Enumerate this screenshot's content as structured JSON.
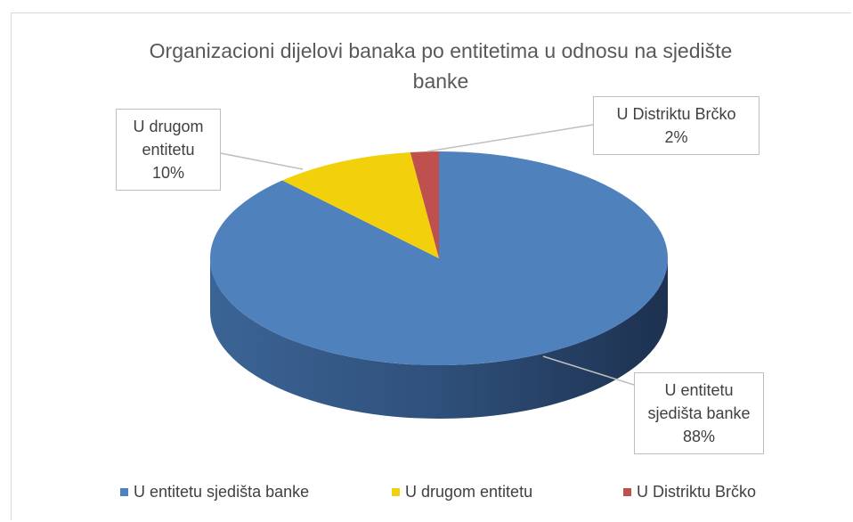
{
  "chart_data": {
    "type": "pie3d",
    "title": "Organizacioni dijelovi banaka po entitetima u odnosu na sjedište banke",
    "categories": [
      "U entitetu sjedišta banke",
      "U drugom entitetu",
      "U Distriktu Brčko"
    ],
    "values": [
      88,
      10,
      2
    ],
    "value_labels": [
      "88%",
      "10%",
      "2%"
    ],
    "colors": [
      "#4f81bd",
      "#f2d00c",
      "#c0504d"
    ],
    "legend": "bottom"
  }
}
